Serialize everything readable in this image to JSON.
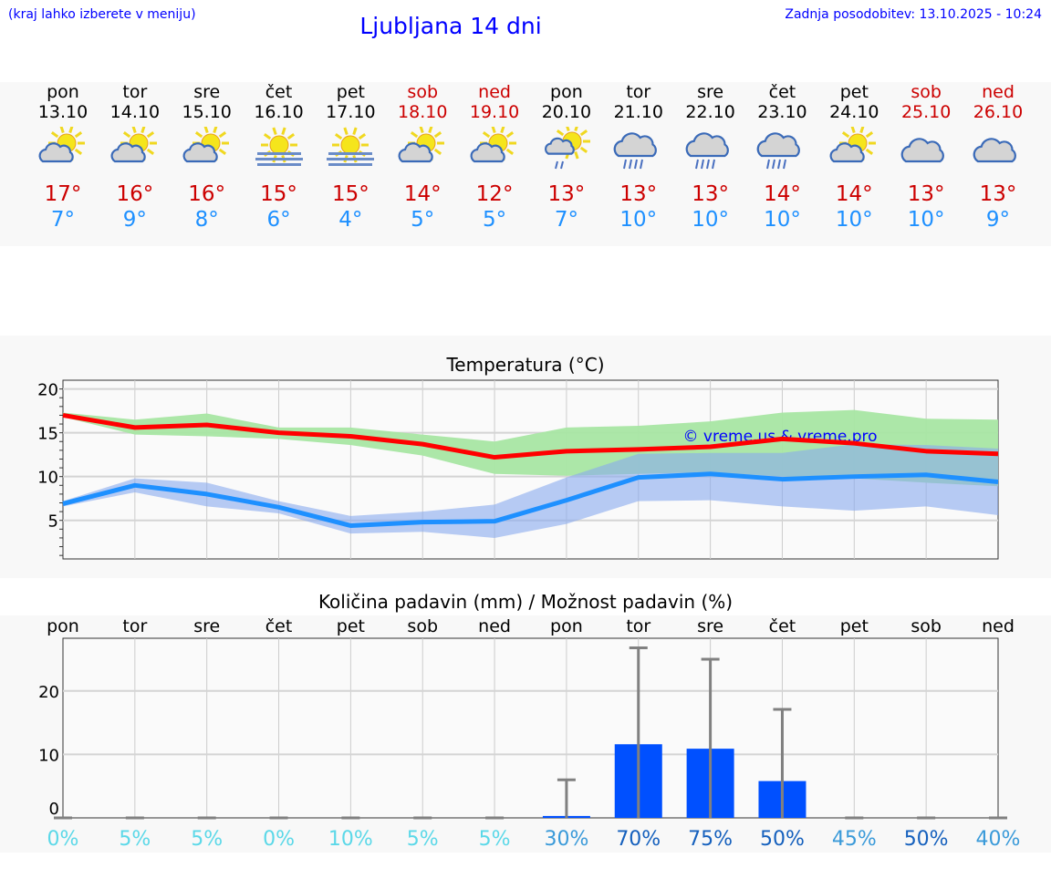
{
  "header": {
    "hint": "(kraj lahko izberete v meniju)",
    "title": "Ljubljana 14 dni",
    "updated": "Zadnja posodobitev: 13.10.2025 - 10:24"
  },
  "colors": {
    "weekday": "#000000",
    "weekend": "#cc0000",
    "tmax": "#cc0000",
    "tmin": "#1e90ff",
    "max_line": "#ff0000",
    "max_band": "#a8e6a3",
    "min_line": "#1e90ff",
    "min_band": "#a9c4f2",
    "bar": "#0050ff",
    "error": "#808080"
  },
  "days": [
    {
      "name": "pon",
      "date": "13.10",
      "weekend": false,
      "icon": "partly-cloudy-icon",
      "tmax": "17°",
      "tmin": "7°"
    },
    {
      "name": "tor",
      "date": "14.10",
      "weekend": false,
      "icon": "partly-cloudy-icon",
      "tmax": "16°",
      "tmin": "9°"
    },
    {
      "name": "sre",
      "date": "15.10",
      "weekend": false,
      "icon": "partly-cloudy-icon",
      "tmax": "16°",
      "tmin": "8°"
    },
    {
      "name": "čet",
      "date": "16.10",
      "weekend": false,
      "icon": "sun-fog-icon",
      "tmax": "15°",
      "tmin": "6°"
    },
    {
      "name": "pet",
      "date": "17.10",
      "weekend": false,
      "icon": "sun-fog-icon",
      "tmax": "15°",
      "tmin": "4°"
    },
    {
      "name": "sob",
      "date": "18.10",
      "weekend": true,
      "icon": "partly-cloudy-icon",
      "tmax": "14°",
      "tmin": "5°"
    },
    {
      "name": "ned",
      "date": "19.10",
      "weekend": true,
      "icon": "partly-cloudy-icon",
      "tmax": "12°",
      "tmin": "5°"
    },
    {
      "name": "pon",
      "date": "20.10",
      "weekend": false,
      "icon": "sun-cloud-rain-icon",
      "tmax": "13°",
      "tmin": "7°"
    },
    {
      "name": "tor",
      "date": "21.10",
      "weekend": false,
      "icon": "cloud-rain-icon",
      "tmax": "13°",
      "tmin": "10°"
    },
    {
      "name": "sre",
      "date": "22.10",
      "weekend": false,
      "icon": "cloud-rain-icon",
      "tmax": "13°",
      "tmin": "10°"
    },
    {
      "name": "čet",
      "date": "23.10",
      "weekend": false,
      "icon": "cloud-rain-icon",
      "tmax": "14°",
      "tmin": "10°"
    },
    {
      "name": "pet",
      "date": "24.10",
      "weekend": false,
      "icon": "partly-cloudy-icon",
      "tmax": "14°",
      "tmin": "10°"
    },
    {
      "name": "sob",
      "date": "25.10",
      "weekend": true,
      "icon": "cloudy-icon",
      "tmax": "13°",
      "tmin": "10°"
    },
    {
      "name": "ned",
      "date": "26.10",
      "weekend": true,
      "icon": "cloudy-icon",
      "tmax": "13°",
      "tmin": "9°"
    }
  ],
  "chart_data": [
    {
      "type": "line",
      "title": "Temperatura (°C)",
      "ylim": [
        0.6,
        21
      ],
      "yticks": [
        5,
        10,
        15,
        20
      ],
      "grid": true,
      "watermark": "© vreme.us & vreme.pro",
      "series": [
        {
          "role": "max",
          "values": [
            17,
            15.6,
            15.9,
            15,
            14.6,
            13.7,
            12.2,
            12.9,
            13.1,
            13.4,
            14.3,
            13.8,
            12.9,
            12.6
          ],
          "band_high": [
            17.3,
            16.5,
            17.2,
            15.6,
            15.6,
            14.8,
            14,
            15.6,
            15.8,
            16.3,
            17.3,
            17.6,
            16.6,
            16.5
          ],
          "band_low": [
            16.8,
            14.8,
            14.6,
            14.3,
            13.6,
            12.4,
            10.3,
            10.1,
            10.3,
            10.5,
            10,
            9.8,
            9.3,
            8.9
          ]
        },
        {
          "role": "min",
          "values": [
            6.9,
            9,
            8,
            6.5,
            4.4,
            4.8,
            4.9,
            7.3,
            9.9,
            10.3,
            9.7,
            10,
            10.2,
            9.4
          ],
          "band_high": [
            7.2,
            9.8,
            9.3,
            7.2,
            5.5,
            6,
            6.8,
            9.9,
            12.6,
            12.7,
            12.7,
            13.7,
            13.6,
            13.2
          ],
          "band_low": [
            6.6,
            8.2,
            6.6,
            5.8,
            3.5,
            3.7,
            3,
            4.6,
            7.2,
            7.3,
            6.6,
            6.1,
            6.6,
            5.6
          ]
        }
      ]
    },
    {
      "type": "bar",
      "title": "Količina padavin (mm) / Možnost padavin (%)",
      "ylim": [
        0,
        28.3
      ],
      "yticks": [
        0,
        10,
        20
      ],
      "grid": true,
      "categories": [
        "pon",
        "tor",
        "sre",
        "čet",
        "pet",
        "sob",
        "ned",
        "pon",
        "tor",
        "sre",
        "čet",
        "pet",
        "sob",
        "ned"
      ],
      "values": [
        0,
        0,
        0,
        0,
        0,
        0,
        0,
        0.3,
        11.6,
        10.9,
        5.8,
        0,
        0,
        0
      ],
      "error_high": [
        0,
        0,
        0,
        0,
        0,
        0,
        0,
        6,
        26.8,
        25,
        17.1,
        0,
        0,
        0
      ],
      "probability": [
        {
          "label": "0%",
          "color": "#5bd8e8"
        },
        {
          "label": "5%",
          "color": "#5bd8e8"
        },
        {
          "label": "5%",
          "color": "#5bd8e8"
        },
        {
          "label": "0%",
          "color": "#5bd8e8"
        },
        {
          "label": "10%",
          "color": "#5bd8e8"
        },
        {
          "label": "5%",
          "color": "#5bd8e8"
        },
        {
          "label": "5%",
          "color": "#5bd8e8"
        },
        {
          "label": "30%",
          "color": "#3a9ad9"
        },
        {
          "label": "70%",
          "color": "#1560bd"
        },
        {
          "label": "75%",
          "color": "#1560bd"
        },
        {
          "label": "50%",
          "color": "#1560bd"
        },
        {
          "label": "45%",
          "color": "#3a9ad9"
        },
        {
          "label": "50%",
          "color": "#1560bd"
        },
        {
          "label": "40%",
          "color": "#3a9ad9"
        }
      ]
    }
  ]
}
